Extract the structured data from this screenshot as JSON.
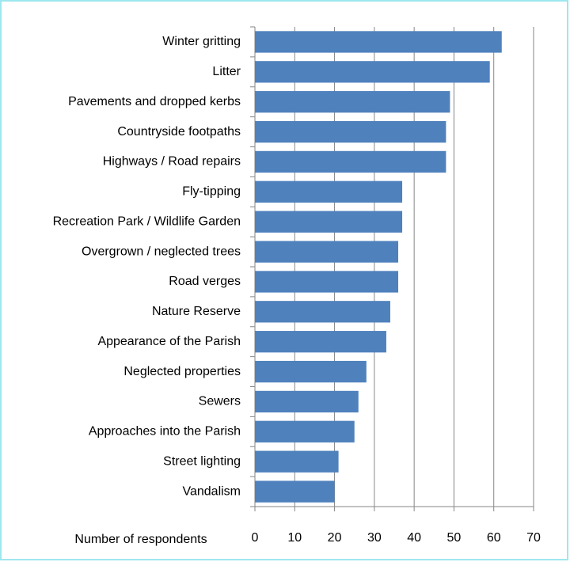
{
  "chart_data": {
    "type": "bar",
    "orientation": "horizontal",
    "x_label": "Number of respondents",
    "categories": [
      "Winter gritting",
      "Litter",
      "Pavements and dropped kerbs",
      "Countryside footpaths",
      "Highways  / Road repairs",
      "Fly-tipping",
      "Recreation Park / Wildlife Garden",
      "Overgrown / neglected trees",
      "Road verges",
      "Nature Reserve",
      "Appearance of the Parish",
      "Neglected properties",
      "Sewers",
      "Approaches into the Parish",
      "Street lighting",
      "Vandalism"
    ],
    "values": [
      62,
      59,
      49,
      48,
      48,
      37,
      37,
      36,
      36,
      34,
      33,
      28,
      26,
      25,
      21,
      20
    ],
    "color": "#4f81bd",
    "xlim": [
      0,
      70
    ],
    "xticks": [
      0,
      10,
      20,
      30,
      40,
      50,
      60,
      70
    ],
    "grid": true
  }
}
